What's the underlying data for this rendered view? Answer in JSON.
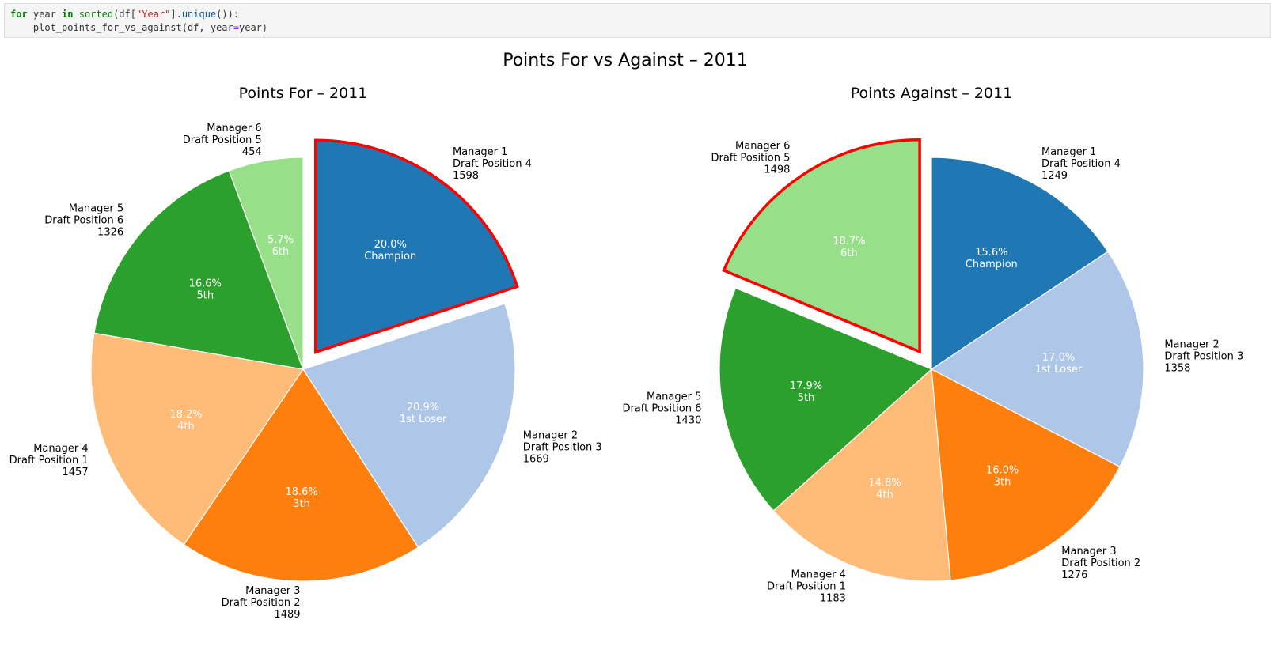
{
  "code_cell": {
    "line1": {
      "t1": "for",
      "t2": " year ",
      "t3": "in",
      "t4": " ",
      "t5": "sorted",
      "t6": "(df[",
      "t7": "\"Year\"",
      "t8": "].",
      "t9": "unique",
      "t10": "()):"
    },
    "line2": {
      "t1": "    plot_points_for_vs_against(df, year",
      "t2": "=",
      "t3": "year)"
    }
  },
  "chart_data": {
    "suptitle": "Points For vs Against – 2011",
    "charts": [
      {
        "type": "pie",
        "title": "Points For – 2011",
        "slices": [
          {
            "manager": "Manager 1",
            "draft": "Draft Position 4",
            "value": 1598,
            "pct": "20.0%",
            "rank": "Champion",
            "color": "#1f77b4",
            "highlight": true
          },
          {
            "manager": "Manager 2",
            "draft": "Draft Position 3",
            "value": 1669,
            "pct": "20.9%",
            "rank": "1st Loser",
            "color": "#aec7e8",
            "highlight": false
          },
          {
            "manager": "Manager 3",
            "draft": "Draft Position 2",
            "value": 1489,
            "pct": "18.6%",
            "rank": "3th",
            "color": "#ff7f0e",
            "highlight": false
          },
          {
            "manager": "Manager 4",
            "draft": "Draft Position 1",
            "value": 1457,
            "pct": "18.2%",
            "rank": "4th",
            "color": "#ffbb78",
            "highlight": false
          },
          {
            "manager": "Manager 5",
            "draft": "Draft Position 6",
            "value": 1326,
            "pct": "16.6%",
            "rank": "5th",
            "color": "#2ca02c",
            "highlight": false
          },
          {
            "manager": "Manager 6",
            "draft": "Draft Position 5",
            "value": 454,
            "pct": "5.7%",
            "rank": "6th",
            "color": "#98df8a",
            "highlight": false
          }
        ]
      },
      {
        "type": "pie",
        "title": "Points Against – 2011",
        "slices": [
          {
            "manager": "Manager 1",
            "draft": "Draft Position 4",
            "value": 1249,
            "pct": "15.6%",
            "rank": "Champion",
            "color": "#1f77b4",
            "highlight": false
          },
          {
            "manager": "Manager 2",
            "draft": "Draft Position 3",
            "value": 1358,
            "pct": "17.0%",
            "rank": "1st Loser",
            "color": "#aec7e8",
            "highlight": false
          },
          {
            "manager": "Manager 3",
            "draft": "Draft Position 2",
            "value": 1276,
            "pct": "16.0%",
            "rank": "3th",
            "color": "#ff7f0e",
            "highlight": false
          },
          {
            "manager": "Manager 4",
            "draft": "Draft Position 1",
            "value": 1183,
            "pct": "14.8%",
            "rank": "4th",
            "color": "#ffbb78",
            "highlight": false
          },
          {
            "manager": "Manager 5",
            "draft": "Draft Position 6",
            "value": 1430,
            "pct": "17.9%",
            "rank": "5th",
            "color": "#2ca02c",
            "highlight": false
          },
          {
            "manager": "Manager 6",
            "draft": "Draft Position 5",
            "value": 1498,
            "pct": "18.7%",
            "rank": "6th",
            "color": "#98df8a",
            "highlight": true
          }
        ]
      }
    ],
    "highlight_edge_color": "#ff0000"
  }
}
